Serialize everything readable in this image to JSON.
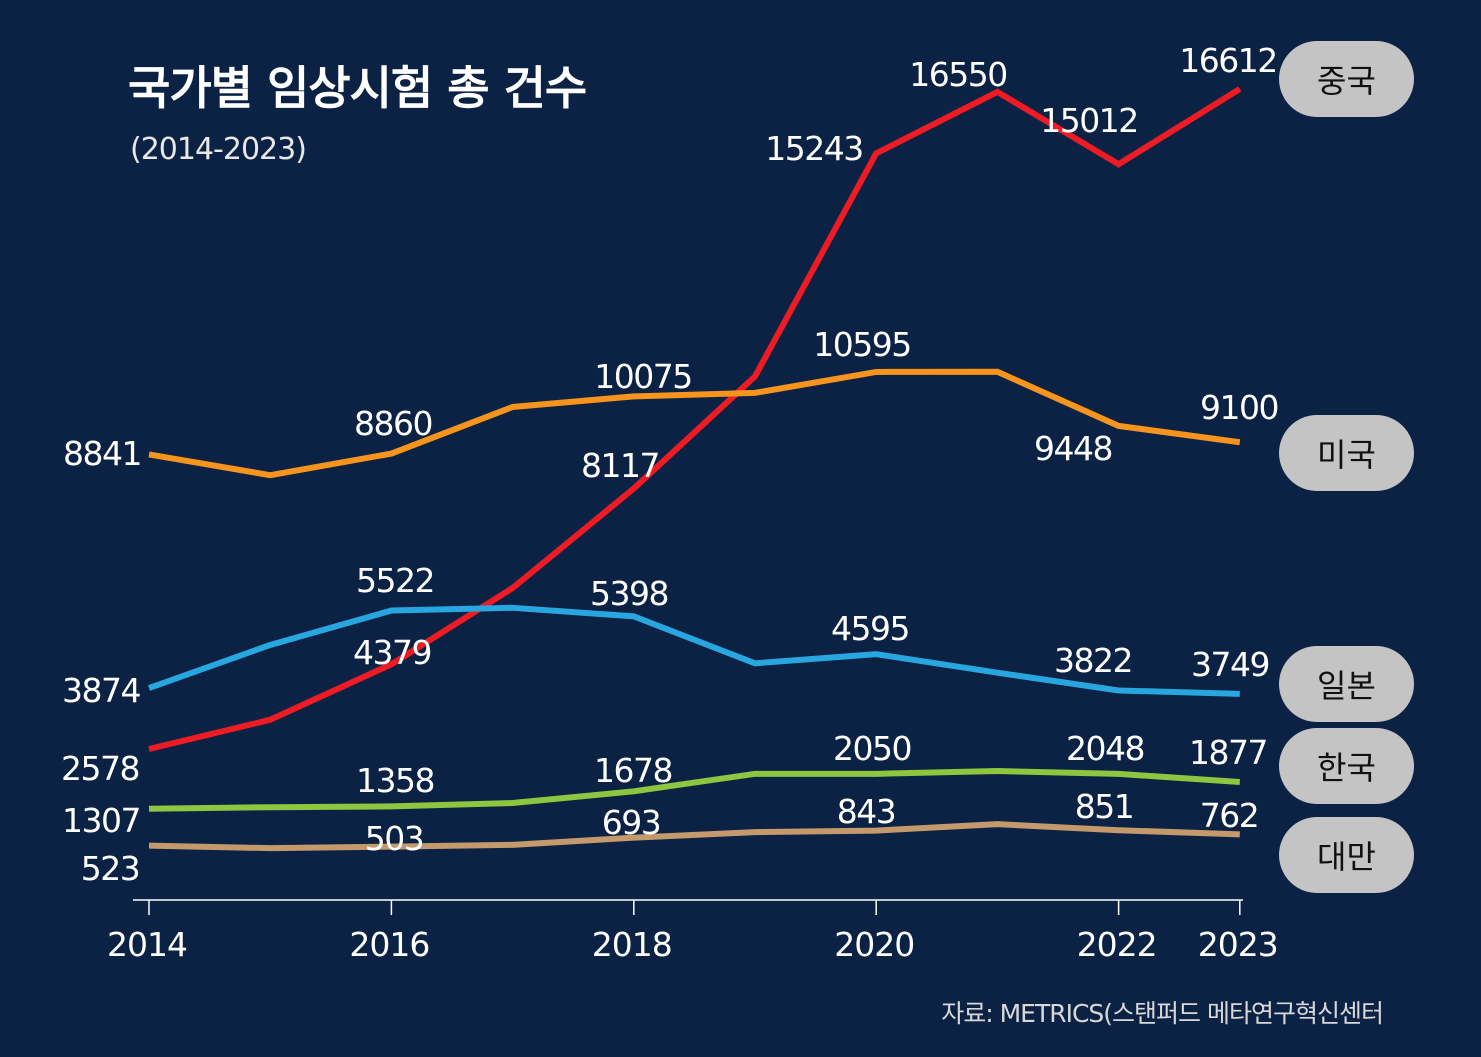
{
  "title": "국가별 임상시험 총 건수",
  "subtitle": "(2014-2023)",
  "source": "자료: METRICS(스탠퍼드 메타연구혁신센터",
  "chart_data": {
    "type": "line",
    "title": "국가별 임상시험 총 건수",
    "subtitle": "(2014-2023)",
    "x": [
      2014,
      2015,
      2016,
      2017,
      2018,
      2019,
      2020,
      2021,
      2022,
      2023
    ],
    "x_tick_labels": [
      "2014",
      "2016",
      "2018",
      "2020",
      "2022",
      "2023"
    ],
    "x_tick_values": [
      2014,
      2016,
      2018,
      2020,
      2022,
      2023
    ],
    "xlabel": "",
    "ylabel": "",
    "grid": false,
    "y_axis_shown": false,
    "legend": "right, end-of-line pill labels",
    "series": [
      {
        "name": "중국",
        "color": "#ed1c24",
        "values": [
          2578,
          3200,
          4379,
          6000,
          8117,
          10500,
          15243,
          16550,
          15012,
          16612
        ],
        "data_labels": [
          "2578",
          null,
          "4379",
          null,
          "8117",
          null,
          "15243",
          "16550",
          "15012",
          "16612"
        ]
      },
      {
        "name": "미국",
        "color": "#f7941d",
        "values": [
          8841,
          8400,
          8860,
          9850,
          10075,
          10150,
          10595,
          10600,
          9448,
          9100
        ],
        "data_labels": [
          "8841",
          null,
          "8860",
          null,
          "10075",
          null,
          "10595",
          null,
          "9448",
          "9100"
        ]
      },
      {
        "name": "일본",
        "color": "#27a6df",
        "values": [
          3874,
          4790,
          5522,
          5580,
          5398,
          4400,
          4595,
          4200,
          3822,
          3749
        ],
        "data_labels": [
          "3874",
          null,
          "5522",
          null,
          "5398",
          null,
          "4595",
          null,
          "3822",
          "3749"
        ]
      },
      {
        "name": "한국",
        "color": "#8dc63f",
        "values": [
          1307,
          1340,
          1358,
          1430,
          1678,
          2050,
          2050,
          2110,
          2048,
          1877
        ],
        "data_labels": [
          "1307",
          null,
          "1358",
          null,
          "1678",
          null,
          "2050",
          null,
          "2048",
          "1877"
        ]
      },
      {
        "name": "대만",
        "color": "#c49a6c",
        "values": [
          523,
          470,
          503,
          540,
          693,
          810,
          843,
          980,
          851,
          762
        ],
        "data_labels": [
          "523",
          null,
          "503",
          null,
          "693",
          null,
          "843",
          null,
          "851",
          "762"
        ]
      }
    ]
  }
}
